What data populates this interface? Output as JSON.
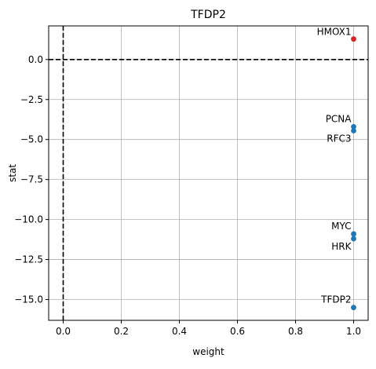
{
  "chart_data": {
    "type": "scatter",
    "title": "TFDP2",
    "xlabel": "weight",
    "ylabel": "stat",
    "xlim": [
      -0.05,
      1.05
    ],
    "ylim": [
      -16.3,
      2.1
    ],
    "xticks": [
      0.0,
      0.2,
      0.4,
      0.6,
      0.8,
      1.0
    ],
    "xtick_labels": [
      "0.0",
      "0.2",
      "0.4",
      "0.6",
      "0.8",
      "1.0"
    ],
    "yticks": [
      0.0,
      -2.5,
      -5.0,
      -7.5,
      -10.0,
      -12.5,
      -15.0
    ],
    "ytick_labels": [
      "0.0",
      "−2.5",
      "−5.0",
      "−7.5",
      "−10.0",
      "−12.5",
      "−15.0"
    ],
    "grid": true,
    "reference_lines": {
      "x": 0,
      "y": 0
    },
    "points": [
      {
        "label": "HMOX1",
        "x": 1.0,
        "y": 1.28,
        "color": "#d62728"
      },
      {
        "label": "PCNA",
        "x": 1.0,
        "y": -4.2,
        "color": "#1f77b4"
      },
      {
        "label": "RFC3",
        "x": 1.0,
        "y": -4.45,
        "color": "#1f77b4"
      },
      {
        "label": "MYC",
        "x": 1.0,
        "y": -10.9,
        "color": "#1f77b4"
      },
      {
        "label": "HRK",
        "x": 1.0,
        "y": -11.2,
        "color": "#1f77b4"
      },
      {
        "label": "TFDP2",
        "x": 1.0,
        "y": -15.5,
        "color": "#1f77b4"
      }
    ]
  }
}
